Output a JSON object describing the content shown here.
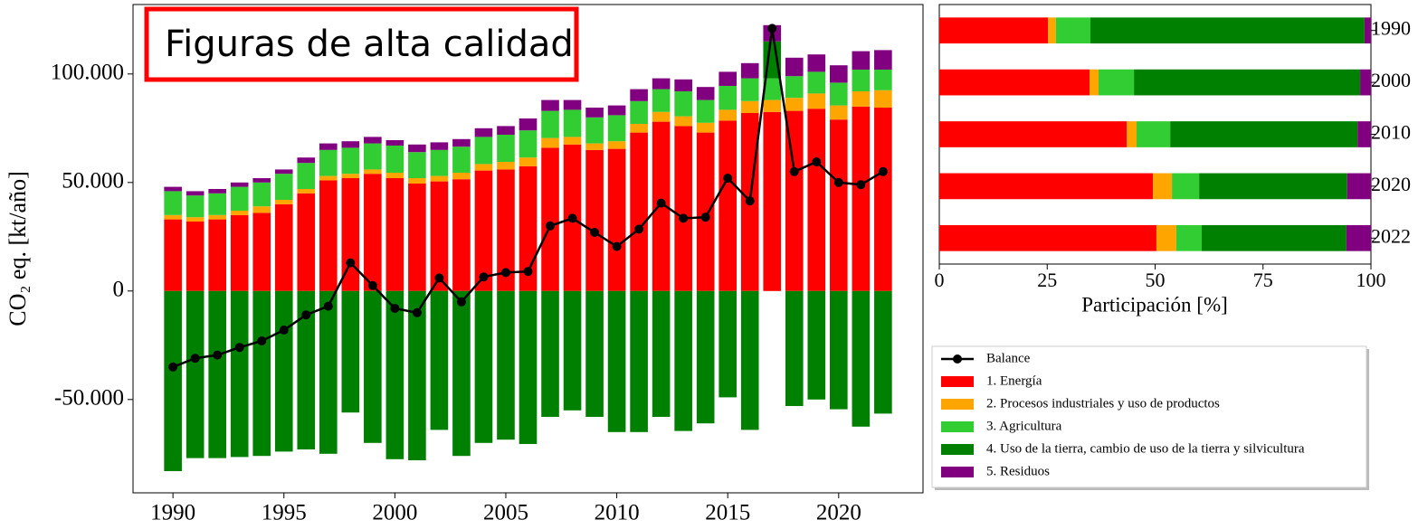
{
  "chart_data": [
    {
      "type": "bar",
      "annotation": "Figuras de alta calidad",
      "ylabel": "CO₂ eq. [kt/año]",
      "x": [
        1990,
        1991,
        1992,
        1993,
        1994,
        1995,
        1996,
        1997,
        1998,
        1999,
        2000,
        2001,
        2002,
        2003,
        2004,
        2005,
        2006,
        2007,
        2008,
        2009,
        2010,
        2011,
        2012,
        2013,
        2014,
        2015,
        2016,
        2017,
        2018,
        2019,
        2020,
        2021,
        2022
      ],
      "xlim": [
        1988.2,
        2023.8
      ],
      "xticks": [
        1990,
        1995,
        2000,
        2005,
        2010,
        2015,
        2020
      ],
      "ylim": [
        -93000,
        132000
      ],
      "yticks": [
        {
          "value": -50000,
          "label": "-50.000"
        },
        0,
        {
          "value": 50000,
          "label": "50.000"
        },
        {
          "value": 100000,
          "label": "100.000"
        }
      ],
      "series": [
        {
          "name": "Balance",
          "type": "line",
          "color": "#000000",
          "values": [
            -35000,
            -31000,
            -29500,
            -26000,
            -23000,
            -18000,
            -11000,
            -7000,
            13000,
            2500,
            -8000,
            -10000,
            6000,
            -5000,
            6500,
            8500,
            9000,
            30000,
            33500,
            27000,
            20500,
            28500,
            40500,
            33500,
            34000,
            52000,
            41500,
            121000,
            55000,
            59500,
            50000,
            49000,
            55000
          ]
        },
        {
          "name": "1. Energía",
          "color": "#ff0000",
          "values": [
            33000,
            32000,
            33000,
            35000,
            36000,
            40000,
            45000,
            51000,
            52000,
            54000,
            52000,
            49500,
            50500,
            51500,
            55500,
            56000,
            57500,
            66000,
            67500,
            65000,
            65500,
            73000,
            78000,
            76000,
            73000,
            78500,
            82000,
            82500,
            83000,
            84000,
            79000,
            85000,
            84500
          ]
        },
        {
          "name": "2. Procesos industriales y uso de productos",
          "color": "#ffa500",
          "values": [
            2000,
            2000,
            2000,
            2000,
            3000,
            2000,
            2000,
            2000,
            2000,
            2000,
            2500,
            2500,
            2500,
            3000,
            3000,
            3500,
            4000,
            4500,
            3500,
            3000,
            3500,
            4000,
            4500,
            4500,
            4500,
            5000,
            5500,
            5500,
            6000,
            7000,
            6500,
            7000,
            8000
          ]
        },
        {
          "name": "3. Agricultura",
          "color": "#32cd32",
          "values": [
            11000,
            10000,
            10000,
            11000,
            11000,
            12000,
            12000,
            12000,
            12000,
            12000,
            12500,
            12000,
            12000,
            12000,
            12500,
            12500,
            12500,
            12500,
            12500,
            12000,
            12000,
            10500,
            10500,
            11500,
            10500,
            11000,
            10500,
            10000,
            10000,
            10000,
            10500,
            10000,
            9500
          ]
        },
        {
          "name": "4. Uso de la tierra, cambio de uso de la tierra y silvicultura",
          "color": "#008000",
          "values": [
            -83000,
            -77000,
            -77000,
            -76500,
            -76000,
            -74000,
            -73000,
            -75000,
            -56000,
            -70000,
            -77500,
            -78000,
            -64000,
            -76000,
            -70000,
            -68500,
            -70500,
            -58000,
            -55000,
            -58000,
            -65000,
            -65000,
            -58000,
            -64500,
            -61000,
            -49000,
            -64000,
            17000,
            -53000,
            -50000,
            -54500,
            -62500,
            -56500
          ]
        },
        {
          "name": "5. Residuos",
          "color": "#800080",
          "values": [
            2000,
            2000,
            2000,
            2000,
            2000,
            2000,
            2500,
            3000,
            3000,
            3000,
            2500,
            3500,
            3500,
            3500,
            4000,
            4000,
            5500,
            5000,
            4500,
            4500,
            4500,
            5500,
            5000,
            5500,
            6000,
            6500,
            7000,
            7500,
            8500,
            8000,
            8000,
            8500,
            9000
          ]
        }
      ]
    },
    {
      "type": "barh",
      "xlabel": "Participación [%]",
      "categories": [
        "1990",
        "2000",
        "2010",
        "2020",
        "2022"
      ],
      "xlim": [
        0,
        100
      ],
      "xticks": [
        0,
        25,
        50,
        75,
        100
      ],
      "series": [
        {
          "color": "#ff0000",
          "values": [
            25.2,
            34.8,
            43.4,
            49.5,
            50.3
          ]
        },
        {
          "color": "#ffa500",
          "values": [
            1.8,
            2.1,
            2.3,
            4.4,
            4.6
          ]
        },
        {
          "color": "#32cd32",
          "values": [
            8,
            8.2,
            7.8,
            6.3,
            5.9
          ]
        },
        {
          "color": "#008000",
          "values": [
            63.5,
            52.4,
            43.4,
            34.3,
            33.5
          ]
        },
        {
          "color": "#800080",
          "values": [
            1.5,
            2.5,
            3.1,
            5.5,
            5.7
          ]
        }
      ]
    }
  ]
}
